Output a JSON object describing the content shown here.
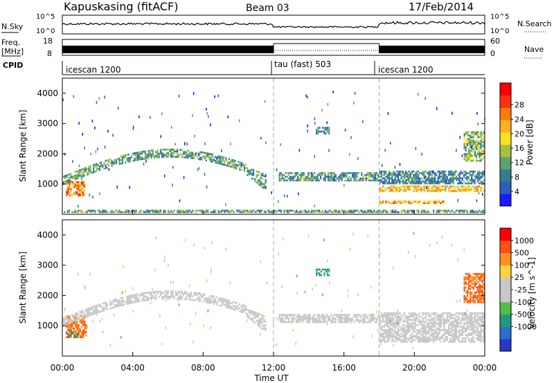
{
  "header": {
    "station": "Kapuskasing (fitACF)",
    "beam": "Beam 03",
    "date": "17/Feb/2014"
  },
  "nsky_panel": {
    "left_label": "N.Sky",
    "left_ticks": [
      "10^5",
      "10^0"
    ],
    "right_ticks": [
      "10^5",
      "10^0"
    ],
    "right_label": "N.Search"
  },
  "freq_panel": {
    "left_label_line1": "Freq.",
    "left_label_line2": "[MHz]",
    "left_ticks": [
      "18",
      "8"
    ],
    "right_ticks": [
      "60",
      "0"
    ],
    "right_label": "Nave"
  },
  "cpid_panel": {
    "label": "CPID",
    "segments": [
      {
        "name": "icescan 1200",
        "start_hr": 0,
        "end_hr": 12
      },
      {
        "name": "tau (fast) 503",
        "start_hr": 12,
        "end_hr": 18
      },
      {
        "name": "icescan 1200",
        "start_hr": 18,
        "end_hr": 24
      }
    ]
  },
  "x_axis": {
    "label": "Time UT",
    "ticks": [
      "00:00",
      "04:00",
      "08:00",
      "12:00",
      "16:00",
      "20:00",
      "00:00"
    ],
    "range_hours": [
      0,
      24
    ]
  },
  "colors": {
    "power_scale": [
      "#1a1aff",
      "#2a5fbf",
      "#2f7f8f",
      "#5fa070",
      "#a6c040",
      "#ffe020",
      "#ffb020",
      "#ff7a10",
      "#ff3010",
      "#ff0000"
    ],
    "velocity_scale": [
      "#2a38c8",
      "#2a6fd0",
      "#1f9a7a",
      "#4fc040",
      "#c8c8c8",
      "#c8c8c8",
      "#ffd040",
      "#ff9020",
      "#ff5010",
      "#ff0000"
    ],
    "gray_scatter": "#c0c0c0"
  },
  "chart_data": [
    {
      "type": "heatmap",
      "name": "Power",
      "ylabel": "Slant Range [km]",
      "y_ticks": [
        "1000",
        "2000",
        "3000",
        "4000"
      ],
      "ylim": [
        0,
        4500
      ],
      "colorbar": {
        "label": "Power [dB]",
        "ticks": [
          "4",
          "8",
          "12",
          "16",
          "20",
          "24",
          "28"
        ],
        "range": [
          0,
          30
        ]
      },
      "echo_bands": [
        {
          "t_start": 0.2,
          "t_end": 1.3,
          "range_km": [
            650,
            1150
          ],
          "value": 22
        },
        {
          "t_start": 0.0,
          "t_end": 11.6,
          "range_shape": "arc",
          "range_km": [
            1050,
            2100
          ],
          "value": 10
        },
        {
          "t_start": 12.3,
          "t_end": 18.0,
          "range_km": [
            1150,
            1450
          ],
          "value": 9
        },
        {
          "t_start": 14.4,
          "t_end": 15.2,
          "range_km": [
            2700,
            2950
          ],
          "value": 8
        },
        {
          "t_start": 18.0,
          "t_end": 24.0,
          "range_km": [
            1050,
            1500
          ],
          "value": 8
        },
        {
          "t_start": 18.0,
          "t_end": 21.7,
          "range_km": [
            400,
            500
          ],
          "value": 20
        },
        {
          "t_start": 18.0,
          "t_end": 24.0,
          "range_km": [
            800,
            1000
          ],
          "value": 18
        },
        {
          "t_start": 22.8,
          "t_end": 24.0,
          "range_km": [
            1800,
            2800
          ],
          "value": 12
        },
        {
          "t_start": 0.0,
          "t_end": 24.0,
          "range_km": [
            100,
            200
          ],
          "value": 10
        }
      ]
    },
    {
      "type": "heatmap",
      "name": "Velocity",
      "ylabel": "Slant Range [km]",
      "y_ticks": [
        "1000",
        "2000",
        "3000",
        "4000"
      ],
      "ylim": [
        0,
        4500
      ],
      "colorbar": {
        "label": "Velocity [m s^-1]",
        "ticks": [
          "1000",
          "500",
          "100",
          "25",
          "-25",
          "-100",
          "-500",
          "-1000"
        ]
      },
      "echo_bands": [
        {
          "t_start": 0.2,
          "t_end": 1.4,
          "range_km": [
            650,
            1400
          ],
          "value": -300
        },
        {
          "t_start": 0.2,
          "t_end": 0.9,
          "range_km": [
            650,
            900
          ],
          "value": 150
        },
        {
          "t_start": 0.0,
          "t_end": 11.6,
          "range_shape": "arc",
          "range_km": [
            1050,
            2500
          ],
          "value": 0
        },
        {
          "t_start": 12.3,
          "t_end": 18.0,
          "range_km": [
            1150,
            1450
          ],
          "value": 0
        },
        {
          "t_start": 14.4,
          "t_end": 15.2,
          "range_km": [
            2700,
            2950
          ],
          "value": 120
        },
        {
          "t_start": 18.0,
          "t_end": 24.0,
          "range_km": [
            500,
            1500
          ],
          "value": 0
        },
        {
          "t_start": 22.8,
          "t_end": 24.0,
          "range_km": [
            1800,
            2800
          ],
          "value": -300
        }
      ]
    }
  ]
}
